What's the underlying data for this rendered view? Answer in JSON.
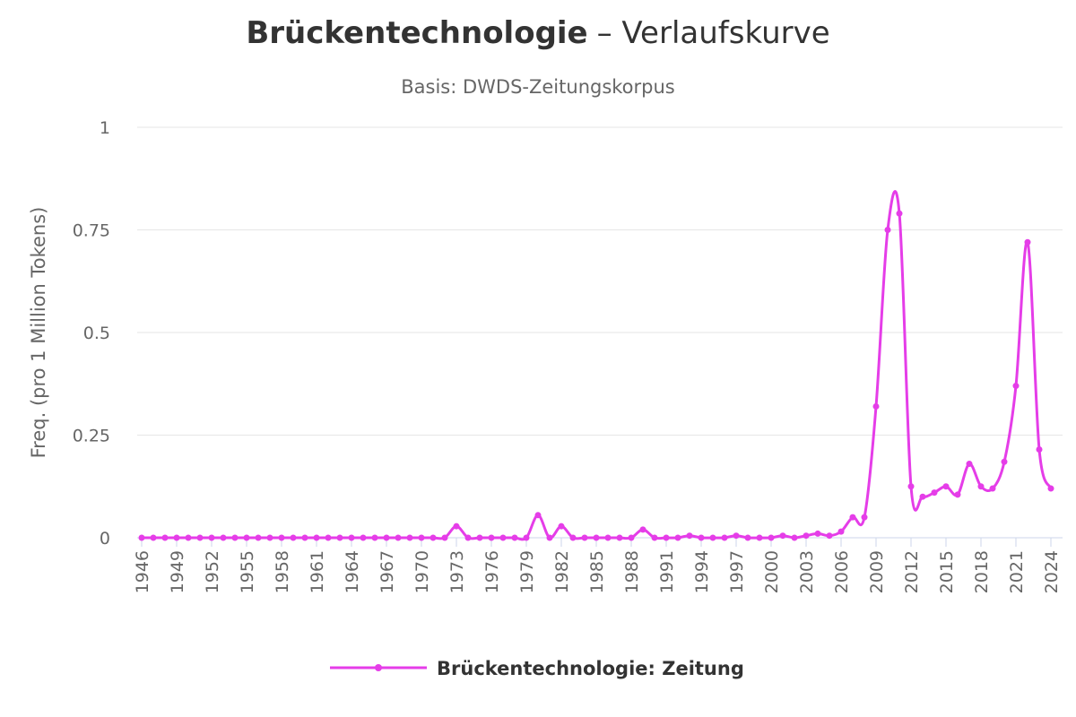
{
  "chart_data": {
    "type": "line",
    "title": [
      "Brückentechnologie",
      "– Verlaufskurve"
    ],
    "subtitle": "Basis: DWDS-Zeitungskorpus",
    "y_label": "Freq. (pro 1 Million Tokens)",
    "x": [
      1946,
      1947,
      1948,
      1949,
      1950,
      1951,
      1952,
      1953,
      1954,
      1955,
      1956,
      1957,
      1958,
      1959,
      1960,
      1961,
      1962,
      1963,
      1964,
      1965,
      1966,
      1967,
      1968,
      1969,
      1970,
      1971,
      1972,
      1973,
      1974,
      1975,
      1976,
      1977,
      1978,
      1979,
      1980,
      1981,
      1982,
      1983,
      1984,
      1985,
      1986,
      1987,
      1988,
      1989,
      1990,
      1991,
      1992,
      1993,
      1994,
      1995,
      1996,
      1997,
      1998,
      1999,
      2000,
      2001,
      2002,
      2003,
      2004,
      2005,
      2006,
      2007,
      2008,
      2009,
      2010,
      2011,
      2012,
      2013,
      2014,
      2015,
      2016,
      2017,
      2018,
      2019,
      2020,
      2021,
      2022,
      2023,
      2024
    ],
    "series": [
      {
        "name": "Brückentechnologie: Zeitung",
        "color": "#e53de8",
        "values": [
          0,
          0,
          0,
          0,
          0,
          0,
          0,
          0,
          0,
          0,
          0,
          0,
          0,
          0,
          0,
          0,
          0,
          0,
          0,
          0,
          0,
          0,
          0,
          0,
          0,
          0,
          0,
          0.028,
          0,
          0,
          0,
          0,
          0,
          0,
          0.055,
          0,
          0.028,
          0,
          0,
          0,
          0,
          0,
          0,
          0.02,
          0,
          0,
          0,
          0.005,
          0,
          0,
          0,
          0.005,
          0,
          0,
          0,
          0.005,
          0,
          0.005,
          0.01,
          0.005,
          0.015,
          0.05,
          0.05,
          0.32,
          0.75,
          0.79,
          0.125,
          0.1,
          0.11,
          0.125,
          0.105,
          0.18,
          0.125,
          0.12,
          0.185,
          0.37,
          0.72,
          0.215,
          0.12
        ]
      }
    ],
    "xlim": [
      1946,
      2024
    ],
    "xticks": [
      1946,
      1949,
      1952,
      1955,
      1958,
      1961,
      1964,
      1967,
      1970,
      1973,
      1976,
      1979,
      1982,
      1985,
      1988,
      1991,
      1994,
      1997,
      2000,
      2003,
      2006,
      2009,
      2012,
      2015,
      2018,
      2021,
      2024
    ],
    "ylim": [
      0,
      1
    ],
    "yticks": [
      0,
      0.25,
      0.5,
      0.75,
      1
    ],
    "grid": true
  }
}
